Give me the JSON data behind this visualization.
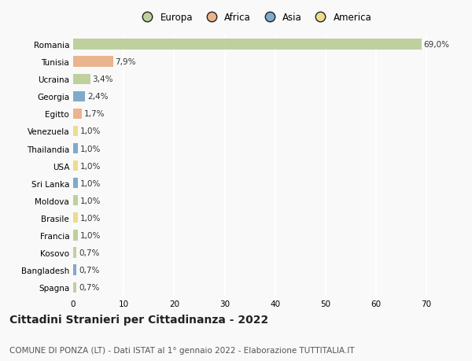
{
  "categories": [
    "Romania",
    "Tunisia",
    "Ucraina",
    "Georgia",
    "Egitto",
    "Venezuela",
    "Thailandia",
    "USA",
    "Sri Lanka",
    "Moldova",
    "Brasile",
    "Francia",
    "Kosovo",
    "Bangladesh",
    "Spagna"
  ],
  "values": [
    69.0,
    7.9,
    3.4,
    2.4,
    1.7,
    1.0,
    1.0,
    1.0,
    1.0,
    1.0,
    1.0,
    1.0,
    0.7,
    0.7,
    0.7
  ],
  "labels": [
    "69,0%",
    "7,9%",
    "3,4%",
    "2,4%",
    "1,7%",
    "1,0%",
    "1,0%",
    "1,0%",
    "1,0%",
    "1,0%",
    "1,0%",
    "1,0%",
    "0,7%",
    "0,7%",
    "0,7%"
  ],
  "colors": [
    "#b5c98e",
    "#e8a87c",
    "#b5c98e",
    "#6b9dc2",
    "#e8a87c",
    "#e8d87c",
    "#6b9dc2",
    "#e8d87c",
    "#6b9dc2",
    "#b5c98e",
    "#e8d87c",
    "#b5c98e",
    "#b5c98e",
    "#6b9dc2",
    "#b5c98e"
  ],
  "legend_labels": [
    "Europa",
    "Africa",
    "Asia",
    "America"
  ],
  "legend_colors": [
    "#b5c98e",
    "#e8a87c",
    "#6b9dc2",
    "#e8d87c"
  ],
  "title": "Cittadini Stranieri per Cittadinanza - 2022",
  "subtitle": "COMUNE DI PONZA (LT) - Dati ISTAT al 1° gennaio 2022 - Elaborazione TUTTITALIA.IT",
  "xlim": [
    0,
    72
  ],
  "xticks": [
    0,
    10,
    20,
    30,
    40,
    50,
    60,
    70
  ],
  "background_color": "#f9f9f9",
  "grid_color": "#ffffff",
  "bar_height": 0.6,
  "title_fontsize": 10,
  "subtitle_fontsize": 7.5,
  "tick_fontsize": 7.5,
  "label_fontsize": 7.5
}
